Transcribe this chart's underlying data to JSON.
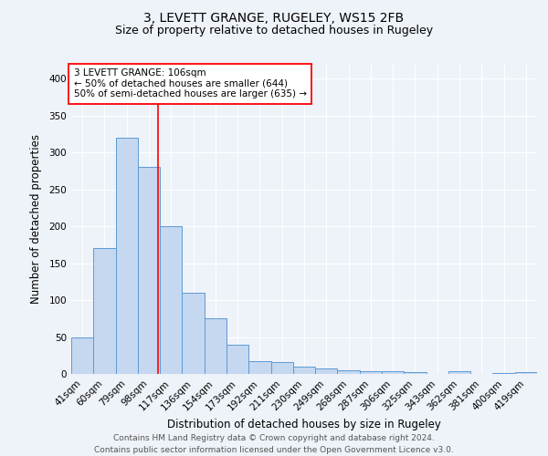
{
  "title": "3, LEVETT GRANGE, RUGELEY, WS15 2FB",
  "subtitle": "Size of property relative to detached houses in Rugeley",
  "xlabel": "Distribution of detached houses by size in Rugeley",
  "ylabel": "Number of detached properties",
  "footer_line1": "Contains HM Land Registry data © Crown copyright and database right 2024.",
  "footer_line2": "Contains public sector information licensed under the Open Government Licence v3.0.",
  "categories": [
    "41sqm",
    "60sqm",
    "79sqm",
    "98sqm",
    "117sqm",
    "136sqm",
    "154sqm",
    "173sqm",
    "192sqm",
    "211sqm",
    "230sqm",
    "249sqm",
    "268sqm",
    "287sqm",
    "306sqm",
    "325sqm",
    "343sqm",
    "362sqm",
    "381sqm",
    "400sqm",
    "419sqm"
  ],
  "values": [
    50,
    170,
    320,
    280,
    200,
    110,
    75,
    40,
    17,
    16,
    10,
    7,
    5,
    4,
    4,
    3,
    0,
    4,
    0,
    1,
    3
  ],
  "bar_color": "#c5d8f0",
  "bar_edge_color": "#5b9bd5",
  "annotation_line1": "3 LEVETT GRANGE: 106sqm",
  "annotation_line2": "← 50% of detached houses are smaller (644)",
  "annotation_line3": "50% of semi-detached houses are larger (635) →",
  "annotation_box_color": "white",
  "annotation_box_edge_color": "red",
  "vline_color": "red",
  "ylim": [
    0,
    420
  ],
  "yticks": [
    0,
    50,
    100,
    150,
    200,
    250,
    300,
    350,
    400
  ],
  "background_color": "#eef2f9",
  "grid_color": "white",
  "title_fontsize": 10,
  "subtitle_fontsize": 9,
  "axis_label_fontsize": 8.5,
  "tick_fontsize": 7.5,
  "annotation_fontsize": 7.5,
  "footer_fontsize": 6.5
}
